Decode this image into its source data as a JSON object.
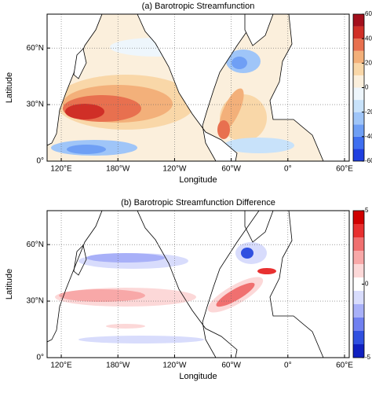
{
  "panels": [
    {
      "title": "(a) Barotropic Streamfunction",
      "x_label": "Longitude",
      "y_label": "Latitude",
      "xlim": [
        105,
        425
      ],
      "ylim": [
        0,
        78
      ],
      "x_ticks": [
        {
          "value": 120,
          "label": "120°E"
        },
        {
          "value": 180,
          "label": "180°W"
        },
        {
          "value": 240,
          "label": "120°W"
        },
        {
          "value": 300,
          "label": "60°W"
        },
        {
          "value": 360,
          "label": "0°"
        },
        {
          "value": 420,
          "label": "60°E"
        }
      ],
      "y_ticks": [
        {
          "value": 0,
          "label": "0°"
        },
        {
          "value": 30,
          "label": "30°N"
        },
        {
          "value": 60,
          "label": "60°N"
        }
      ],
      "colorbar": {
        "lim": [
          -60,
          60
        ],
        "ticks": [
          60,
          40,
          20,
          0,
          -20,
          -40,
          -60
        ],
        "colors": [
          "#1f3fe0",
          "#3f6ff0",
          "#6f9ff5",
          "#9fc5f8",
          "#c8e2fa",
          "#eef6fc",
          "#fbefdc",
          "#f9d7a8",
          "#f3b07a",
          "#e8704f",
          "#d02f27",
          "#a30f1c"
        ]
      }
    },
    {
      "title": "(b) Barotropic Streamfunction Difference",
      "x_label": "Longitude",
      "y_label": "Latitude",
      "xlim": [
        105,
        425
      ],
      "ylim": [
        0,
        78
      ],
      "x_ticks": [
        {
          "value": 120,
          "label": "120°E"
        },
        {
          "value": 180,
          "label": "180°W"
        },
        {
          "value": 240,
          "label": "120°W"
        },
        {
          "value": 300,
          "label": "60°W"
        },
        {
          "value": 360,
          "label": "0°"
        },
        {
          "value": 420,
          "label": "60°E"
        }
      ],
      "y_ticks": [
        {
          "value": 0,
          "label": "0°"
        },
        {
          "value": 30,
          "label": "30°N"
        },
        {
          "value": 60,
          "label": "60°N"
        }
      ],
      "colorbar": {
        "lim": [
          -5,
          5
        ],
        "ticks": [
          5,
          0,
          -5
        ],
        "colors": [
          "#1020c0",
          "#3050e0",
          "#7080f0",
          "#a8b0f8",
          "#d8dcfc",
          "#ffffff",
          "#fcd8d8",
          "#f8a8a8",
          "#f07070",
          "#e83030",
          "#d00000"
        ]
      }
    }
  ]
}
